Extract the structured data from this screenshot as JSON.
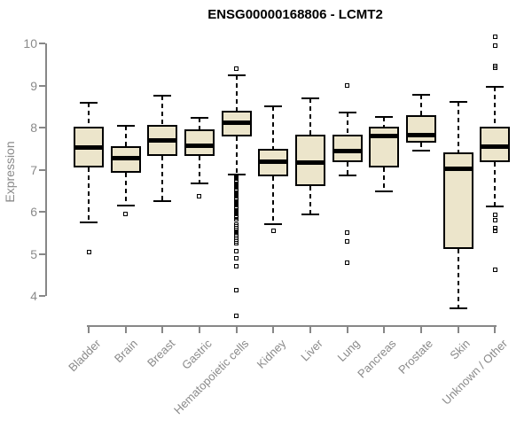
{
  "chart_data": {
    "type": "boxplot",
    "title": "ENSG00000168806 - LCMT2",
    "ylabel": "Expression",
    "xlabel": "",
    "ylim": [
      4,
      10
    ],
    "yticks": [
      4,
      5,
      6,
      7,
      8,
      9,
      10
    ],
    "grid": false,
    "legend": "none",
    "colors": {
      "box_fill": "#ECE5CB",
      "box_border": "#000000",
      "axis": "#878787",
      "tick_label": "#8a8a8a",
      "title": "#000000",
      "background": "#ffffff"
    },
    "categories": [
      "Bladder",
      "Brain",
      "Breast",
      "Gastric",
      "Hematopoietic cells",
      "Kidney",
      "Liver",
      "Lung",
      "Pancreas",
      "Prostate",
      "Skin",
      "Unknown / Other"
    ],
    "boxes": [
      {
        "category": "Bladder",
        "whisker_low": 5.75,
        "q1": 7.05,
        "median": 7.53,
        "q3": 8.02,
        "whisker_high": 8.6,
        "outliers": [
          5.05
        ]
      },
      {
        "category": "Brain",
        "whisker_low": 6.15,
        "q1": 6.93,
        "median": 7.27,
        "q3": 7.55,
        "whisker_high": 8.05,
        "outliers": [
          5.95
        ]
      },
      {
        "category": "Breast",
        "whisker_low": 6.25,
        "q1": 7.33,
        "median": 7.7,
        "q3": 8.07,
        "whisker_high": 8.75,
        "outliers": []
      },
      {
        "category": "Gastric",
        "whisker_low": 6.68,
        "q1": 7.32,
        "median": 7.58,
        "q3": 7.95,
        "whisker_high": 8.23,
        "outliers": [
          6.37
        ]
      },
      {
        "category": "Hematopoietic cells",
        "whisker_low": 6.88,
        "q1": 7.79,
        "median": 8.12,
        "q3": 8.4,
        "whisker_high": 9.25,
        "outliers": [
          9.4,
          6.85,
          6.82,
          6.79,
          6.76,
          6.73,
          6.7,
          6.67,
          6.64,
          6.61,
          6.58,
          6.55,
          6.52,
          6.49,
          6.46,
          6.43,
          6.4,
          6.37,
          6.34,
          6.31,
          6.28,
          6.25,
          6.22,
          6.19,
          6.16,
          6.13,
          6.1,
          6.07,
          6.04,
          6.01,
          5.98,
          5.95,
          5.92,
          5.89,
          5.86,
          5.83,
          5.7,
          5.66,
          5.62,
          5.58,
          5.54,
          5.5,
          5.46,
          5.42,
          5.38,
          5.34,
          5.3,
          5.26,
          5.06,
          4.91,
          4.71,
          4.15,
          3.54
        ]
      },
      {
        "category": "Kidney",
        "whisker_low": 5.7,
        "q1": 6.85,
        "median": 7.2,
        "q3": 7.49,
        "whisker_high": 8.5,
        "outliers": [
          5.55
        ]
      },
      {
        "category": "Liver",
        "whisker_low": 5.95,
        "q1": 6.62,
        "median": 7.17,
        "q3": 7.84,
        "whisker_high": 8.7,
        "outliers": []
      },
      {
        "category": "Lung",
        "whisker_low": 6.87,
        "q1": 7.19,
        "median": 7.44,
        "q3": 7.84,
        "whisker_high": 8.35,
        "outliers": [
          9.0,
          5.5,
          5.3,
          4.8
        ]
      },
      {
        "category": "Pancreas",
        "whisker_low": 6.48,
        "q1": 7.05,
        "median": 7.8,
        "q3": 8.03,
        "whisker_high": 8.25,
        "outliers": []
      },
      {
        "category": "Prostate",
        "whisker_low": 7.45,
        "q1": 7.65,
        "median": 7.82,
        "q3": 8.3,
        "whisker_high": 8.77,
        "outliers": []
      },
      {
        "category": "Skin",
        "whisker_low": 3.72,
        "q1": 5.12,
        "median": 7.03,
        "q3": 7.41,
        "whisker_high": 8.62,
        "outliers": []
      },
      {
        "category": "Unknown / Other",
        "whisker_low": 6.13,
        "q1": 7.18,
        "median": 7.55,
        "q3": 8.02,
        "whisker_high": 8.98,
        "outliers": [
          10.15,
          9.94,
          9.46,
          9.42,
          5.93,
          5.81,
          5.62,
          5.55,
          4.63
        ]
      }
    ]
  }
}
